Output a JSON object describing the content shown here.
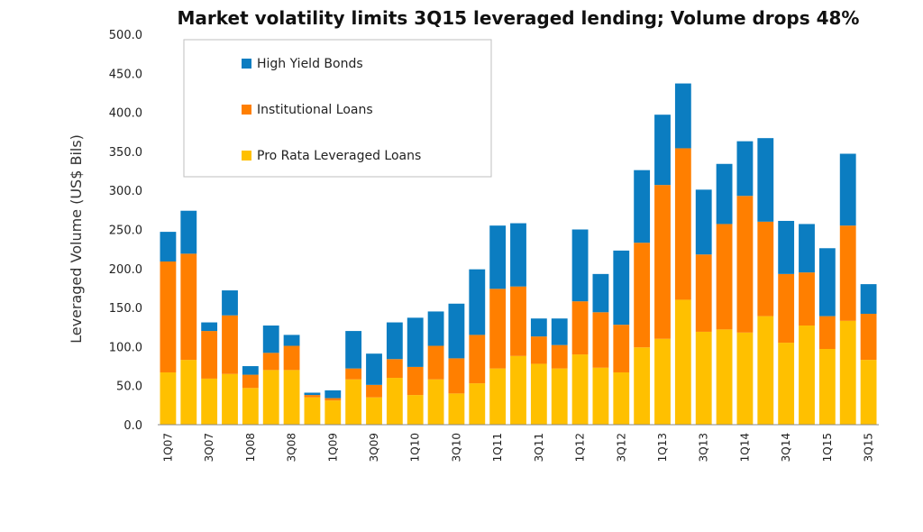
{
  "chart_data": {
    "type": "bar",
    "stacked": true,
    "title": "Market volatility limits 3Q15 leveraged lending; Volume drops 48%",
    "ylabel": "Leveraged Volume (US$ Bils)",
    "ylim": [
      0,
      500
    ],
    "yticks": [
      "0.0",
      "50.0",
      "100.0",
      "150.0",
      "200.0",
      "250.0",
      "300.0",
      "350.0",
      "400.0",
      "450.0",
      "500.0"
    ],
    "categories": [
      "1Q07",
      "2Q07",
      "3Q07",
      "4Q07",
      "1Q08",
      "2Q08",
      "3Q08",
      "4Q08",
      "1Q09",
      "2Q09",
      "3Q09",
      "4Q09",
      "1Q10",
      "2Q10",
      "3Q10",
      "4Q10",
      "1Q11",
      "2Q11",
      "3Q11",
      "4Q11",
      "1Q12",
      "2Q12",
      "3Q12",
      "4Q12",
      "1Q13",
      "2Q13",
      "3Q13",
      "4Q13",
      "1Q14",
      "2Q14",
      "3Q14",
      "4Q14",
      "1Q15",
      "2Q15",
      "3Q15"
    ],
    "x_tick_labels": [
      {
        "index": 0,
        "label": "1Q07"
      },
      {
        "index": 2,
        "label": "3Q07"
      },
      {
        "index": 4,
        "label": "1Q08"
      },
      {
        "index": 6,
        "label": "3Q08"
      },
      {
        "index": 8,
        "label": "1Q09"
      },
      {
        "index": 10,
        "label": "3Q09"
      },
      {
        "index": 12,
        "label": "1Q10"
      },
      {
        "index": 14,
        "label": "3Q10"
      },
      {
        "index": 16,
        "label": "1Q11"
      },
      {
        "index": 18,
        "label": "3Q11"
      },
      {
        "index": 20,
        "label": "1Q12"
      },
      {
        "index": 22,
        "label": "3Q12"
      },
      {
        "index": 24,
        "label": "1Q13"
      },
      {
        "index": 26,
        "label": "3Q13"
      },
      {
        "index": 28,
        "label": "1Q14"
      },
      {
        "index": 30,
        "label": "3Q14"
      },
      {
        "index": 32,
        "label": "1Q15"
      },
      {
        "index": 34,
        "label": "3Q15"
      }
    ],
    "series": [
      {
        "name": "Pro Rata Leveraged Loans",
        "color": "#FFC000",
        "values": [
          67,
          83,
          59,
          65,
          47,
          70,
          70,
          35,
          31,
          58,
          35,
          60,
          38,
          58,
          40,
          53,
          72,
          88,
          78,
          72,
          90,
          73,
          67,
          99,
          110,
          160,
          119,
          122,
          118,
          139,
          105,
          127,
          97,
          133,
          83
        ]
      },
      {
        "name": "Institutional Loans",
        "color": "#FF7F00",
        "values": [
          142,
          136,
          61,
          75,
          17,
          22,
          31,
          3,
          3,
          14,
          16,
          24,
          36,
          43,
          45,
          62,
          102,
          89,
          35,
          30,
          68,
          71,
          61,
          134,
          197,
          194,
          99,
          135,
          175,
          121,
          88,
          68,
          42,
          122,
          59
        ]
      },
      {
        "name": "High Yield Bonds",
        "color": "#0B7DC1",
        "values": [
          38,
          55,
          11,
          32,
          11,
          35,
          14,
          3,
          10,
          48,
          40,
          47,
          63,
          44,
          70,
          84,
          81,
          81,
          23,
          34,
          92,
          49,
          95,
          93,
          90,
          83,
          83,
          77,
          70,
          107,
          68,
          62,
          87,
          92,
          38
        ]
      }
    ],
    "legend": {
      "placement": "top-left",
      "order": [
        "High Yield Bonds",
        "Institutional Loans",
        "Pro Rata Leveraged Loans"
      ]
    },
    "grid": false
  }
}
